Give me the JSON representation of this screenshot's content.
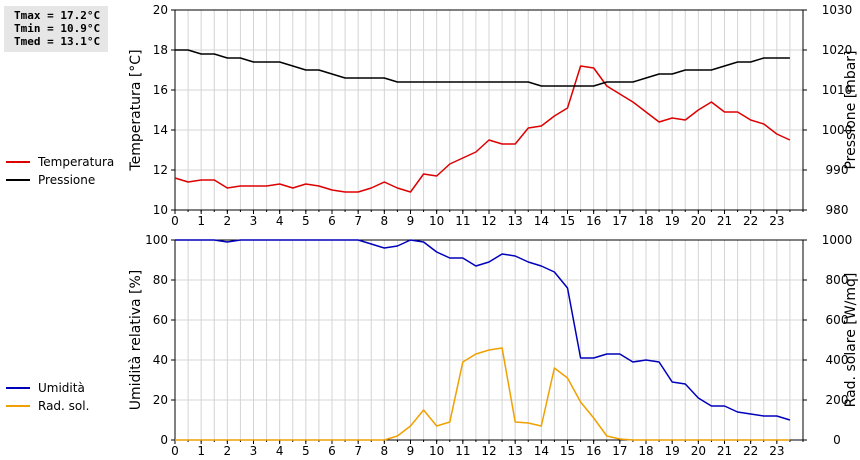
{
  "stats": {
    "tmax": "Tmax = 17.2°C",
    "tmin": "Tmin = 10.9°C",
    "tmed": "Tmed = 13.1°C"
  },
  "chart_data": [
    {
      "type": "line",
      "x_range": [
        0,
        24
      ],
      "x_ticks": [
        "0",
        "1",
        "2",
        "3",
        "4",
        "5",
        "6",
        "7",
        "8",
        "9",
        "10",
        "11",
        "12",
        "13",
        "14",
        "15",
        "16",
        "17",
        "18",
        "19",
        "20",
        "21",
        "22",
        "23"
      ],
      "ylabel": "Temperatura [°C]",
      "ylim": [
        10,
        20
      ],
      "y_ticks": [
        "10",
        "12",
        "14",
        "16",
        "18",
        "20"
      ],
      "y2label": "Pressione [mbar]",
      "y2lim": [
        980,
        1030
      ],
      "y2_ticks": [
        "980",
        "990",
        "1000",
        "1010",
        "1020",
        "1030"
      ],
      "grid": true,
      "legend_placement": "left",
      "series": [
        {
          "name": "Temperatura",
          "axis": "left",
          "color": "#dd0000",
          "x": [
            0,
            0.5,
            1,
            1.5,
            2,
            2.5,
            3,
            3.5,
            4,
            4.5,
            5,
            5.5,
            6,
            6.5,
            7,
            7.5,
            8,
            8.5,
            9,
            9.5,
            10,
            10.5,
            11,
            11.5,
            12,
            12.5,
            13,
            13.5,
            14,
            14.5,
            15,
            15.5,
            16,
            16.5,
            17,
            17.5,
            18,
            18.5,
            19,
            19.5,
            20,
            20.5,
            21,
            21.5,
            22,
            22.5,
            23,
            23.5
          ],
          "values": [
            11.6,
            11.4,
            11.5,
            11.5,
            11.1,
            11.2,
            11.2,
            11.2,
            11.3,
            11.1,
            11.3,
            11.2,
            11.0,
            10.9,
            10.9,
            11.1,
            11.4,
            11.1,
            10.9,
            11.8,
            11.7,
            12.3,
            12.6,
            12.9,
            13.5,
            13.3,
            13.3,
            14.1,
            14.2,
            14.7,
            15.1,
            17.2,
            17.1,
            16.2,
            15.8,
            15.4,
            14.9,
            14.4,
            14.6,
            14.5,
            15.0,
            15.4,
            14.9,
            14.9,
            14.5,
            14.3,
            13.8,
            13.5
          ]
        },
        {
          "name": "Pressione",
          "axis": "right",
          "color": "#000000",
          "x": [
            0,
            0.5,
            1,
            1.5,
            2,
            2.5,
            3,
            3.5,
            4,
            4.5,
            5,
            5.5,
            6,
            6.5,
            7,
            7.5,
            8,
            8.5,
            9,
            9.5,
            10,
            10.5,
            11,
            11.5,
            12,
            12.5,
            13,
            13.5,
            14,
            14.5,
            15,
            15.5,
            16,
            16.5,
            17,
            17.5,
            18,
            18.5,
            19,
            19.5,
            20,
            20.5,
            21,
            21.5,
            22,
            22.5,
            23,
            23.5
          ],
          "values": [
            1020,
            1020,
            1019,
            1019,
            1018,
            1018,
            1017,
            1017,
            1017,
            1016,
            1015,
            1015,
            1014,
            1013,
            1013,
            1013,
            1013,
            1012,
            1012,
            1012,
            1012,
            1012,
            1012,
            1012,
            1012,
            1012,
            1012,
            1012,
            1011,
            1011,
            1011,
            1011,
            1011,
            1012,
            1012,
            1012,
            1013,
            1014,
            1014,
            1015,
            1015,
            1015,
            1016,
            1017,
            1017,
            1018,
            1018,
            1018
          ]
        }
      ]
    },
    {
      "type": "line",
      "x_range": [
        0,
        24
      ],
      "x_ticks": [
        "0",
        "1",
        "2",
        "3",
        "4",
        "5",
        "6",
        "7",
        "8",
        "9",
        "10",
        "11",
        "12",
        "13",
        "14",
        "15",
        "16",
        "17",
        "18",
        "19",
        "20",
        "21",
        "22",
        "23"
      ],
      "ylabel": "Umidità relativa [%]",
      "ylim": [
        0,
        100
      ],
      "y_ticks": [
        "0",
        "20",
        "40",
        "60",
        "80",
        "100"
      ],
      "y2label": "Rad. solare [W/mq]",
      "y2lim": [
        0,
        1000
      ],
      "y2_ticks": [
        "0",
        "200",
        "400",
        "600",
        "800",
        "1000"
      ],
      "grid": true,
      "legend_placement": "left",
      "series": [
        {
          "name": "Umidità",
          "axis": "left",
          "color": "#0000bb",
          "x": [
            0,
            0.5,
            1,
            1.5,
            2,
            2.5,
            3,
            3.5,
            4,
            4.5,
            5,
            5.5,
            6,
            6.5,
            7,
            7.5,
            8,
            8.5,
            9,
            9.5,
            10,
            10.5,
            11,
            11.5,
            12,
            12.5,
            13,
            13.5,
            14,
            14.5,
            15,
            15.5,
            16,
            16.5,
            17,
            17.5,
            18,
            18.5,
            19,
            19.5,
            20,
            20.5,
            21,
            21.5,
            22,
            22.5,
            23,
            23.5
          ],
          "values": [
            100,
            100,
            100,
            100,
            99,
            100,
            100,
            100,
            100,
            100,
            100,
            100,
            100,
            100,
            100,
            98,
            96,
            97,
            100,
            99,
            94,
            91,
            91,
            87,
            89,
            93,
            92,
            89,
            87,
            84,
            76,
            41,
            41,
            43,
            43,
            39,
            40,
            39,
            29,
            28,
            21,
            17,
            17,
            14,
            13,
            12,
            12,
            10
          ]
        },
        {
          "name": "Rad. sol.",
          "axis": "right",
          "color": "#f0a000",
          "x": [
            0,
            0.5,
            1,
            1.5,
            2,
            2.5,
            3,
            3.5,
            4,
            4.5,
            5,
            5.5,
            6,
            6.5,
            7,
            7.5,
            8,
            8.5,
            9,
            9.5,
            10,
            10.5,
            11,
            11.5,
            12,
            12.5,
            13,
            13.5,
            14,
            14.5,
            15,
            15.5,
            16,
            16.5,
            17,
            17.5,
            18,
            18.5,
            19,
            19.5,
            20,
            20.5,
            21,
            21.5,
            22,
            22.5,
            23,
            23.5
          ],
          "values": [
            0,
            0,
            0,
            0,
            0,
            0,
            0,
            0,
            0,
            0,
            0,
            0,
            0,
            0,
            0,
            0,
            0,
            20,
            70,
            150,
            70,
            90,
            390,
            430,
            450,
            460,
            90,
            85,
            70,
            360,
            310,
            190,
            110,
            20,
            5,
            0,
            0,
            0,
            0,
            0,
            0,
            0,
            0,
            0,
            0,
            0,
            0,
            0
          ]
        }
      ]
    }
  ]
}
